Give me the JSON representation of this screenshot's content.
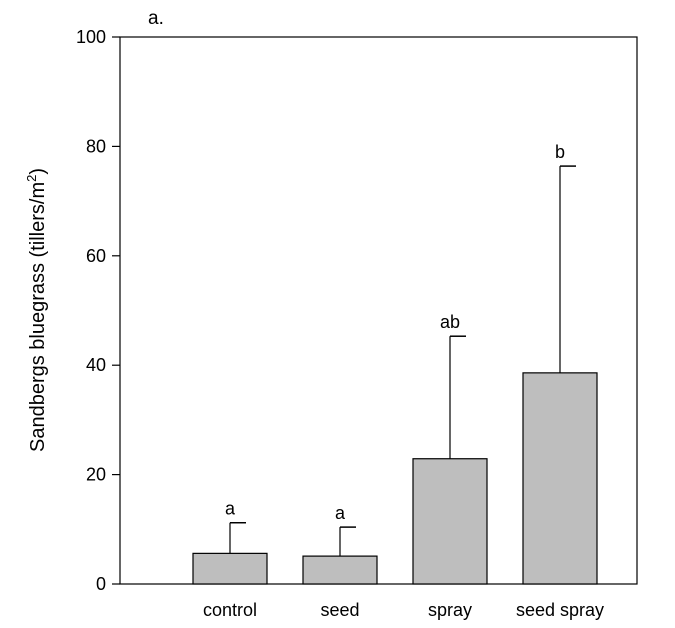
{
  "chart_data": {
    "type": "bar",
    "panel_label": "a.",
    "y_label": {
      "text": "Sandbergs bluegrass (tillers/m",
      "superscript": "2",
      "end": ")"
    },
    "categories": [
      "control",
      "seed",
      "spray",
      "seed spray"
    ],
    "values": [
      5.6,
      5.1,
      22.9,
      38.6
    ],
    "errors": [
      5.6,
      5.3,
      22.4,
      37.8
    ],
    "letters": [
      "a",
      "a",
      "ab",
      "b"
    ],
    "color": "#bebebe",
    "ylim": [
      0,
      100
    ],
    "yticks": [
      0,
      20,
      40,
      60,
      80,
      100
    ]
  }
}
